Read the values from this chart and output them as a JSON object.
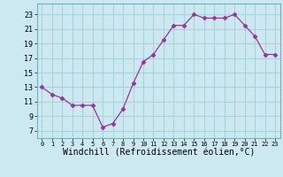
{
  "x": [
    0,
    1,
    2,
    3,
    4,
    5,
    6,
    7,
    8,
    9,
    10,
    11,
    12,
    13,
    14,
    15,
    16,
    17,
    18,
    19,
    20,
    21,
    22,
    23
  ],
  "y": [
    13,
    12,
    11.5,
    10.5,
    10.5,
    10.5,
    7.5,
    8,
    10,
    13.5,
    16.5,
    17.5,
    19.5,
    21.5,
    21.5,
    23,
    22.5,
    22.5,
    22.5,
    23,
    21.5,
    20,
    17.5,
    17.5
  ],
  "line_color": "#993399",
  "marker": "D",
  "marker_size": 2.5,
  "bg_color": "#cce8f0",
  "grid_color": "#aad4dd",
  "xlabel": "Windchill (Refroidissement éolien,°C)",
  "xlabel_fontsize": 7,
  "xtick_labels": [
    "0",
    "1",
    "2",
    "3",
    "4",
    "5",
    "6",
    "7",
    "8",
    "9",
    "10",
    "11",
    "12",
    "13",
    "14",
    "15",
    "16",
    "17",
    "18",
    "19",
    "20",
    "21",
    "22",
    "23"
  ],
  "ytick_values": [
    7,
    9,
    11,
    13,
    15,
    17,
    19,
    21,
    23
  ],
  "ylim": [
    6.0,
    24.5
  ],
  "xlim": [
    -0.5,
    23.5
  ]
}
